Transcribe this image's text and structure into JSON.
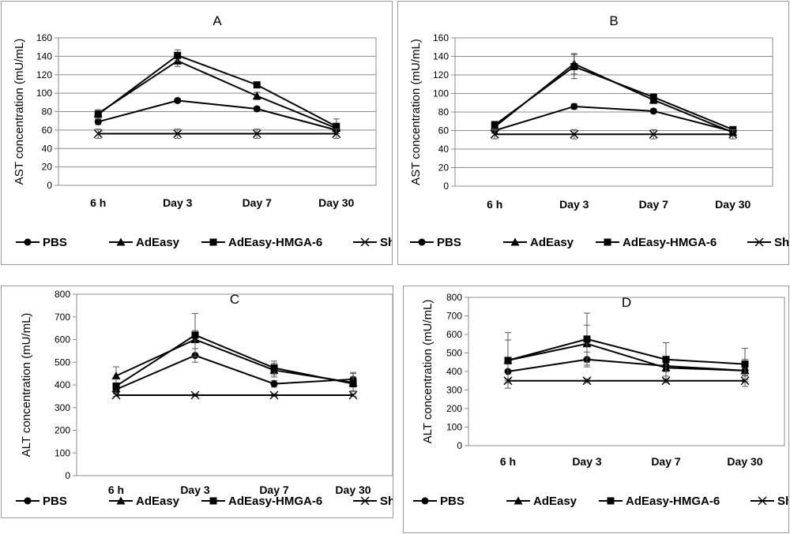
{
  "chart_data": [
    {
      "type": "line",
      "title": "A",
      "ylabel": "AST concentration (mU/mL)",
      "xlabel": "",
      "categories": [
        "6 h",
        "Day 3",
        "Day 7",
        "Day 30"
      ],
      "ylim": [
        0,
        160
      ],
      "yticks": [
        0,
        20,
        40,
        60,
        80,
        100,
        120,
        140,
        160
      ],
      "grid": true,
      "legend_position": "bottom",
      "series": [
        {
          "name": "PBS",
          "marker": "circle",
          "values": [
            69,
            92,
            83,
            60
          ],
          "errors": [
            3,
            2,
            2,
            4
          ]
        },
        {
          "name": "AdEasy",
          "marker": "triangle",
          "values": [
            78,
            135,
            97,
            62
          ],
          "errors": [
            3,
            6,
            4,
            4
          ]
        },
        {
          "name": "AdEasy-HMGA-6",
          "marker": "square",
          "values": [
            77,
            141,
            109,
            64
          ],
          "errors": [
            5,
            6,
            3,
            8
          ]
        },
        {
          "name": "Sham Control",
          "marker": "x",
          "values": [
            56,
            56,
            56,
            56
          ],
          "errors": [
            5,
            5,
            5,
            5
          ]
        }
      ]
    },
    {
      "type": "line",
      "title": "B",
      "ylabel": "AST concentration (mU/mL)",
      "xlabel": "",
      "categories": [
        "6 h",
        "Day 3",
        "Day 7",
        "Day 30"
      ],
      "ylim": [
        0,
        160
      ],
      "yticks": [
        0,
        20,
        40,
        60,
        80,
        100,
        120,
        140,
        160
      ],
      "grid": true,
      "legend_position": "bottom",
      "series": [
        {
          "name": "PBS",
          "marker": "circle",
          "values": [
            60,
            86,
            81,
            59
          ],
          "errors": [
            3,
            3,
            2,
            3
          ]
        },
        {
          "name": "AdEasy",
          "marker": "triangle",
          "values": [
            64,
            132,
            93,
            58
          ],
          "errors": [
            4,
            11,
            4,
            3
          ]
        },
        {
          "name": "AdEasy-HMGA-6",
          "marker": "square",
          "values": [
            66,
            129,
            96,
            61
          ],
          "errors": [
            4,
            13,
            3,
            3
          ]
        },
        {
          "name": "Sham Control",
          "marker": "x",
          "values": [
            56,
            56,
            56,
            56
          ],
          "errors": [
            5,
            5,
            5,
            5
          ]
        }
      ]
    },
    {
      "type": "line",
      "title": "C",
      "ylabel": "ALT concentration (mU/mL)",
      "xlabel": "",
      "categories": [
        "6 h",
        "Day 3",
        "Day 7",
        "Day 30"
      ],
      "ylim": [
        0,
        800
      ],
      "yticks": [
        0,
        100,
        200,
        300,
        400,
        500,
        600,
        700,
        800
      ],
      "grid": false,
      "legend_position": "bottom",
      "series": [
        {
          "name": "PBS",
          "marker": "circle",
          "values": [
            380,
            530,
            405,
            425
          ],
          "errors": [
            20,
            30,
            15,
            30
          ]
        },
        {
          "name": "AdEasy",
          "marker": "triangle",
          "values": [
            440,
            600,
            465,
            410
          ],
          "errors": [
            40,
            40,
            30,
            40
          ]
        },
        {
          "name": "AdEasy-HMGA-6",
          "marker": "square",
          "values": [
            395,
            620,
            475,
            405
          ],
          "errors": [
            30,
            95,
            30,
            30
          ]
        },
        {
          "name": "Sham Control",
          "marker": "x",
          "values": [
            355,
            355,
            355,
            355
          ],
          "errors": [
            5,
            5,
            5,
            5
          ]
        }
      ]
    },
    {
      "type": "line",
      "title": "D",
      "ylabel": "ALT concentration (mU/mL)",
      "xlabel": "",
      "categories": [
        "6 h",
        "Day 3",
        "Day 7",
        "Day 30"
      ],
      "ylim": [
        0,
        800
      ],
      "yticks": [
        0,
        100,
        200,
        300,
        400,
        500,
        600,
        700,
        800
      ],
      "grid": false,
      "legend_position": "bottom",
      "series": [
        {
          "name": "PBS",
          "marker": "circle",
          "values": [
            400,
            465,
            430,
            405
          ],
          "errors": [
            40,
            40,
            30,
            30
          ]
        },
        {
          "name": "AdEasy",
          "marker": "triangle",
          "values": [
            460,
            550,
            420,
            405
          ],
          "errors": [
            110,
            100,
            60,
            60
          ]
        },
        {
          "name": "AdEasy-HMGA-6",
          "marker": "square",
          "values": [
            460,
            575,
            465,
            440
          ],
          "errors": [
            150,
            140,
            90,
            85
          ]
        },
        {
          "name": "Sham Control",
          "marker": "x",
          "values": [
            350,
            350,
            350,
            350
          ],
          "errors": [
            10,
            10,
            10,
            30
          ]
        }
      ]
    }
  ]
}
